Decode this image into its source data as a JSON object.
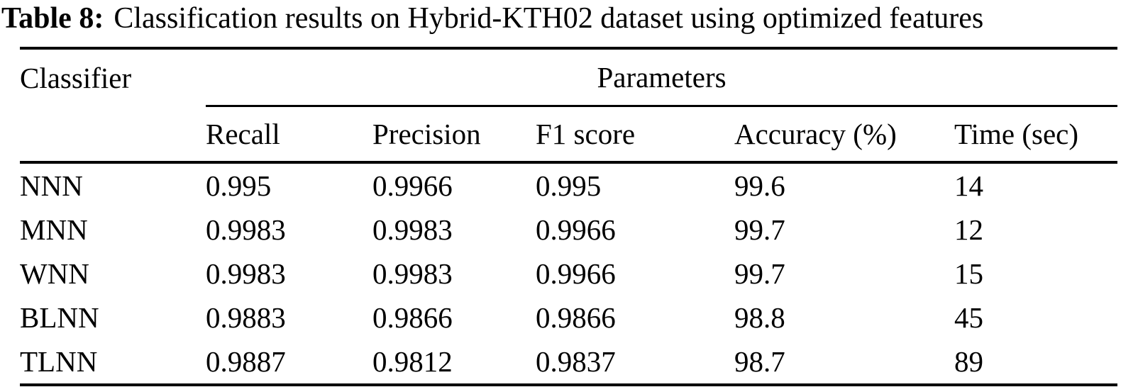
{
  "caption": {
    "label": "Table 8:",
    "text": "Classification results on Hybrid-KTH02 dataset using optimized features"
  },
  "table": {
    "classifier_header": "Classifier",
    "group_header": "Parameters",
    "columns": [
      "Recall",
      "Precision",
      "F1 score",
      "Accuracy (%)",
      "Time (sec)"
    ],
    "rows": [
      {
        "classifier": "NNN",
        "values": [
          "0.995",
          "0.9966",
          "0.995",
          "99.6",
          "14"
        ]
      },
      {
        "classifier": "MNN",
        "values": [
          "0.9983",
          "0.9983",
          "0.9966",
          "99.7",
          "12"
        ]
      },
      {
        "classifier": "WNN",
        "values": [
          "0.9983",
          "0.9983",
          "0.9966",
          "99.7",
          "15"
        ]
      },
      {
        "classifier": "BLNN",
        "values": [
          "0.9883",
          "0.9866",
          "0.9866",
          "98.8",
          "45"
        ]
      },
      {
        "classifier": "TLNN",
        "values": [
          "0.9887",
          "0.9812",
          "0.9837",
          "98.7",
          "89"
        ]
      }
    ]
  },
  "colors": {
    "text": "#000000",
    "background": "#ffffff",
    "rule": "#000000"
  }
}
